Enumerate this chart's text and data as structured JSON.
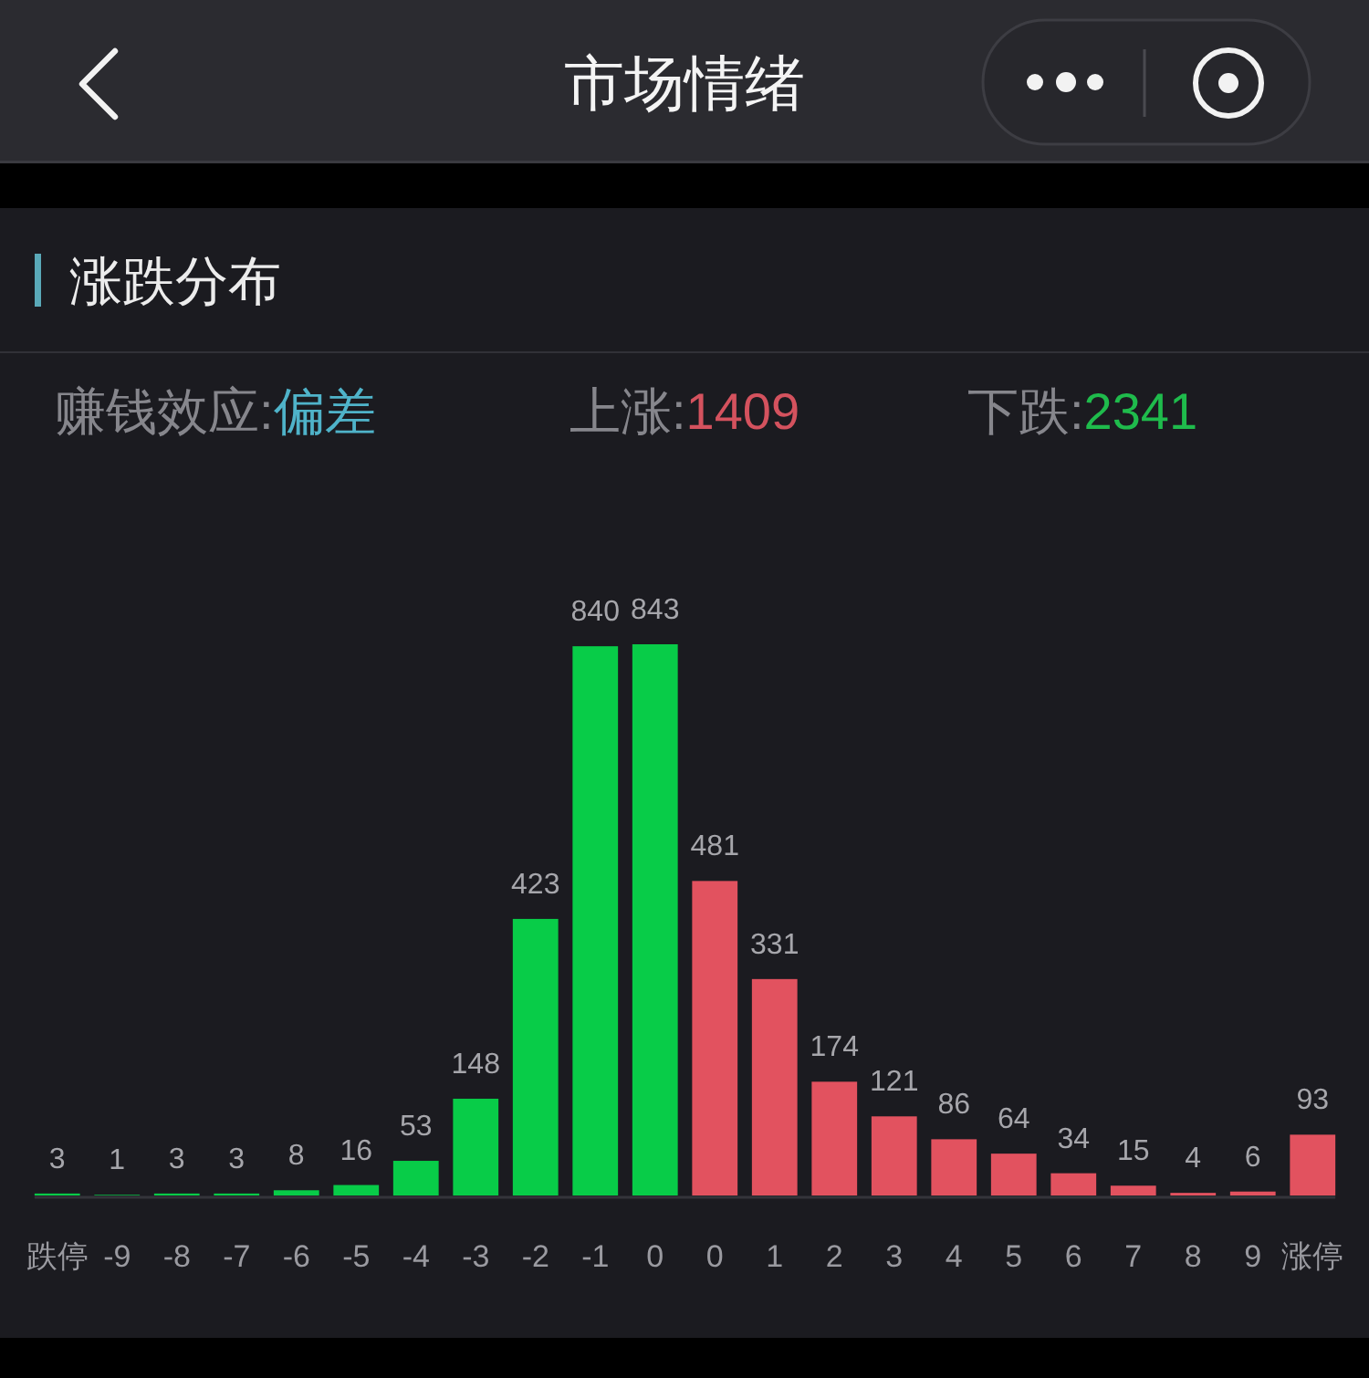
{
  "chart_data": {
    "type": "bar",
    "title": "市场情绪",
    "subtitle": "涨跌分布",
    "annotations": [
      "赚钱效应:偏差",
      "上涨:1409",
      "下跌:2341"
    ],
    "categories": [
      "跌停",
      "-9",
      "-8",
      "-7",
      "-6",
      "-5",
      "-4",
      "-3",
      "-2",
      "-1",
      "0",
      "0",
      "1",
      "2",
      "3",
      "4",
      "5",
      "6",
      "7",
      "8",
      "9",
      "涨停"
    ],
    "values": [
      3,
      1,
      3,
      3,
      8,
      16,
      53,
      148,
      423,
      840,
      843,
      481,
      331,
      174,
      121,
      86,
      64,
      34,
      15,
      4,
      6,
      93
    ],
    "colors": [
      "#08cc48",
      "#08cc48",
      "#08cc48",
      "#08cc48",
      "#08cc48",
      "#08cc48",
      "#08cc48",
      "#08cc48",
      "#08cc48",
      "#08cc48",
      "#08cc48",
      "#e2525f",
      "#e2525f",
      "#e2525f",
      "#e2525f",
      "#e2525f",
      "#e2525f",
      "#e2525f",
      "#e2525f",
      "#e2525f",
      "#e2525f",
      "#e2525f"
    ],
    "data_labels": true
  }
}
